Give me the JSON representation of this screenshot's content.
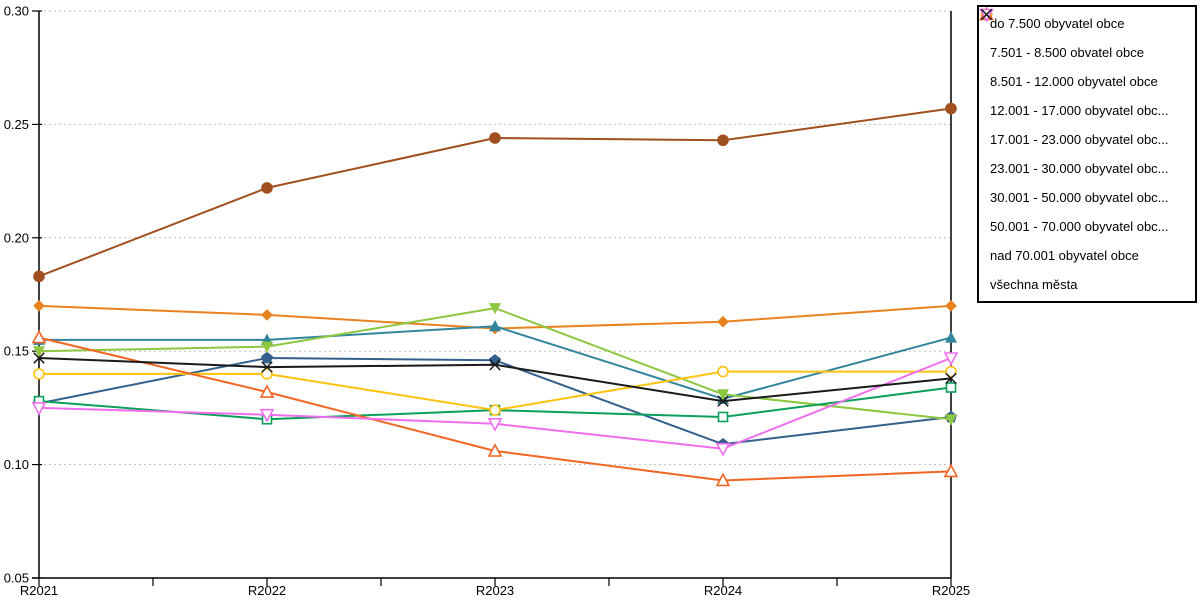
{
  "chart_data": {
    "type": "line",
    "categories": [
      "R2021",
      "R2022",
      "R2023",
      "R2024",
      "R2025"
    ],
    "ylim": [
      0.05,
      0.3
    ],
    "yticks": [
      0.05,
      0.1,
      0.15,
      0.2,
      0.25,
      0.3
    ],
    "ytick_labels": [
      "0.05",
      "0.10",
      "0.15",
      "0.20",
      "0.25",
      "0.30"
    ],
    "xlabel": "",
    "ylabel": "",
    "title": "",
    "grid": "horizontal-dashed",
    "grid_color": "#BFBFBF",
    "axis_color": "#000000",
    "legend_position": "right",
    "series": [
      {
        "label": "do 7.500 obyvatel obce",
        "marker": "diamond",
        "fill": "filled",
        "color": "#E8821E",
        "values": [
          0.17,
          0.166,
          0.16,
          0.163,
          0.17
        ]
      },
      {
        "label": "7.501 - 8.500 obvatel obce",
        "marker": "circle",
        "fill": "filled",
        "color": "#A0501E",
        "values": [
          0.183,
          0.222,
          0.244,
          0.243,
          0.257
        ]
      },
      {
        "label": "8.501 - 12.000 obyvatel obce",
        "marker": "triangle-up",
        "fill": "filled",
        "color": "#31859C",
        "values": [
          0.155,
          0.155,
          0.161,
          0.129,
          0.156
        ]
      },
      {
        "label": "12.001 - 17.000 obyvatel obc...",
        "marker": "pentagon",
        "fill": "filled",
        "color": "#33608C",
        "values": [
          0.127,
          0.147,
          0.146,
          0.109,
          0.121
        ]
      },
      {
        "label": "17.001 - 23.000 obyvatel obc...",
        "marker": "triangle-down",
        "fill": "filled",
        "color": "#8DC63F",
        "values": [
          0.15,
          0.152,
          0.169,
          0.131,
          0.12
        ]
      },
      {
        "label": "23.001 - 30.000 obyvatel obc...",
        "marker": "square",
        "fill": "hollow",
        "color": "#0BA05A",
        "values": [
          0.128,
          0.12,
          0.124,
          0.121,
          0.134
        ]
      },
      {
        "label": "30.001 - 50.000 obyvatel obc...",
        "marker": "circle",
        "fill": "hollow",
        "color": "#FFC20E",
        "values": [
          0.14,
          0.14,
          0.124,
          0.141,
          0.141
        ]
      },
      {
        "label": "50.001 - 70.000 obyvatel obc...",
        "marker": "triangle-up",
        "fill": "hollow",
        "color": "#F26522",
        "values": [
          0.156,
          0.132,
          0.106,
          0.093,
          0.097
        ]
      },
      {
        "label": "nad 70.001 obyvatel obce",
        "marker": "triangle-down",
        "fill": "hollow",
        "color": "#F06EEC",
        "values": [
          0.125,
          0.122,
          0.118,
          0.107,
          0.147
        ]
      },
      {
        "label": "všechna města",
        "marker": "x",
        "fill": "line",
        "color": "#1A1A1A",
        "values": [
          0.147,
          0.143,
          0.144,
          0.128,
          0.138
        ]
      }
    ]
  }
}
